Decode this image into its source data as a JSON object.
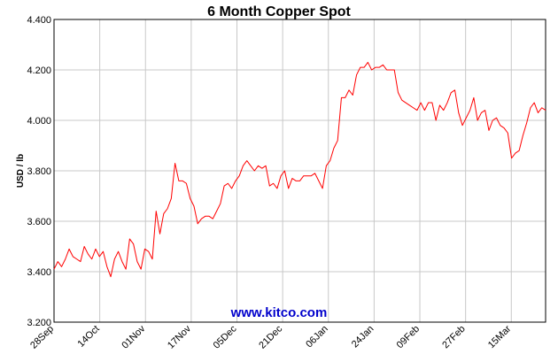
{
  "chart_data": {
    "type": "line",
    "title": "6 Month Copper Spot",
    "ylabel": "USD / lb",
    "xlabel": "",
    "ylim": [
      3.2,
      4.4
    ],
    "yticks": [
      "3.200",
      "3.400",
      "3.600",
      "3.800",
      "4.000",
      "4.200",
      "4.400"
    ],
    "xticks": [
      "28Sep",
      "14Oct",
      "01Nov",
      "17Nov",
      "05Dec",
      "21Dec",
      "06Jan",
      "24Jan",
      "09Feb",
      "27Feb",
      "15Mar"
    ],
    "grid": true,
    "watermark": "www.kitco.com",
    "line_color": "#ff0000",
    "series": [
      {
        "values": [
          3.41,
          3.44,
          3.42,
          3.45,
          3.49,
          3.46,
          3.45,
          3.44,
          3.5,
          3.47,
          3.45,
          3.49,
          3.46,
          3.48,
          3.42,
          3.38,
          3.45,
          3.48,
          3.44,
          3.41,
          3.53,
          3.51,
          3.44,
          3.41,
          3.49,
          3.48,
          3.45,
          3.64,
          3.55,
          3.63,
          3.65,
          3.69,
          3.83,
          3.76,
          3.76,
          3.75,
          3.69,
          3.66,
          3.59,
          3.61,
          3.62,
          3.62,
          3.61,
          3.64,
          3.67,
          3.74,
          3.75,
          3.73,
          3.76,
          3.78,
          3.82,
          3.84,
          3.82,
          3.8,
          3.82,
          3.81,
          3.82,
          3.74,
          3.75,
          3.73,
          3.78,
          3.8,
          3.73,
          3.77,
          3.76,
          3.76,
          3.78,
          3.78,
          3.78,
          3.79,
          3.76,
          3.73,
          3.82,
          3.84,
          3.89,
          3.92,
          4.09,
          4.09,
          4.12,
          4.1,
          4.18,
          4.21,
          4.21,
          4.23,
          4.2,
          4.21,
          4.21,
          4.22,
          4.2,
          4.2,
          4.2,
          4.11,
          4.08,
          4.07,
          4.06,
          4.05,
          4.04,
          4.07,
          4.04,
          4.07,
          4.07,
          4.0,
          4.06,
          4.04,
          4.07,
          4.11,
          4.12,
          4.03,
          3.98,
          4.01,
          4.04,
          4.09,
          4.0,
          4.03,
          4.04,
          3.96,
          4.0,
          4.01,
          3.98,
          3.97,
          3.95,
          3.85,
          3.87,
          3.88,
          3.94,
          3.99,
          4.05,
          4.07,
          4.03,
          4.05,
          4.04
        ]
      }
    ]
  }
}
